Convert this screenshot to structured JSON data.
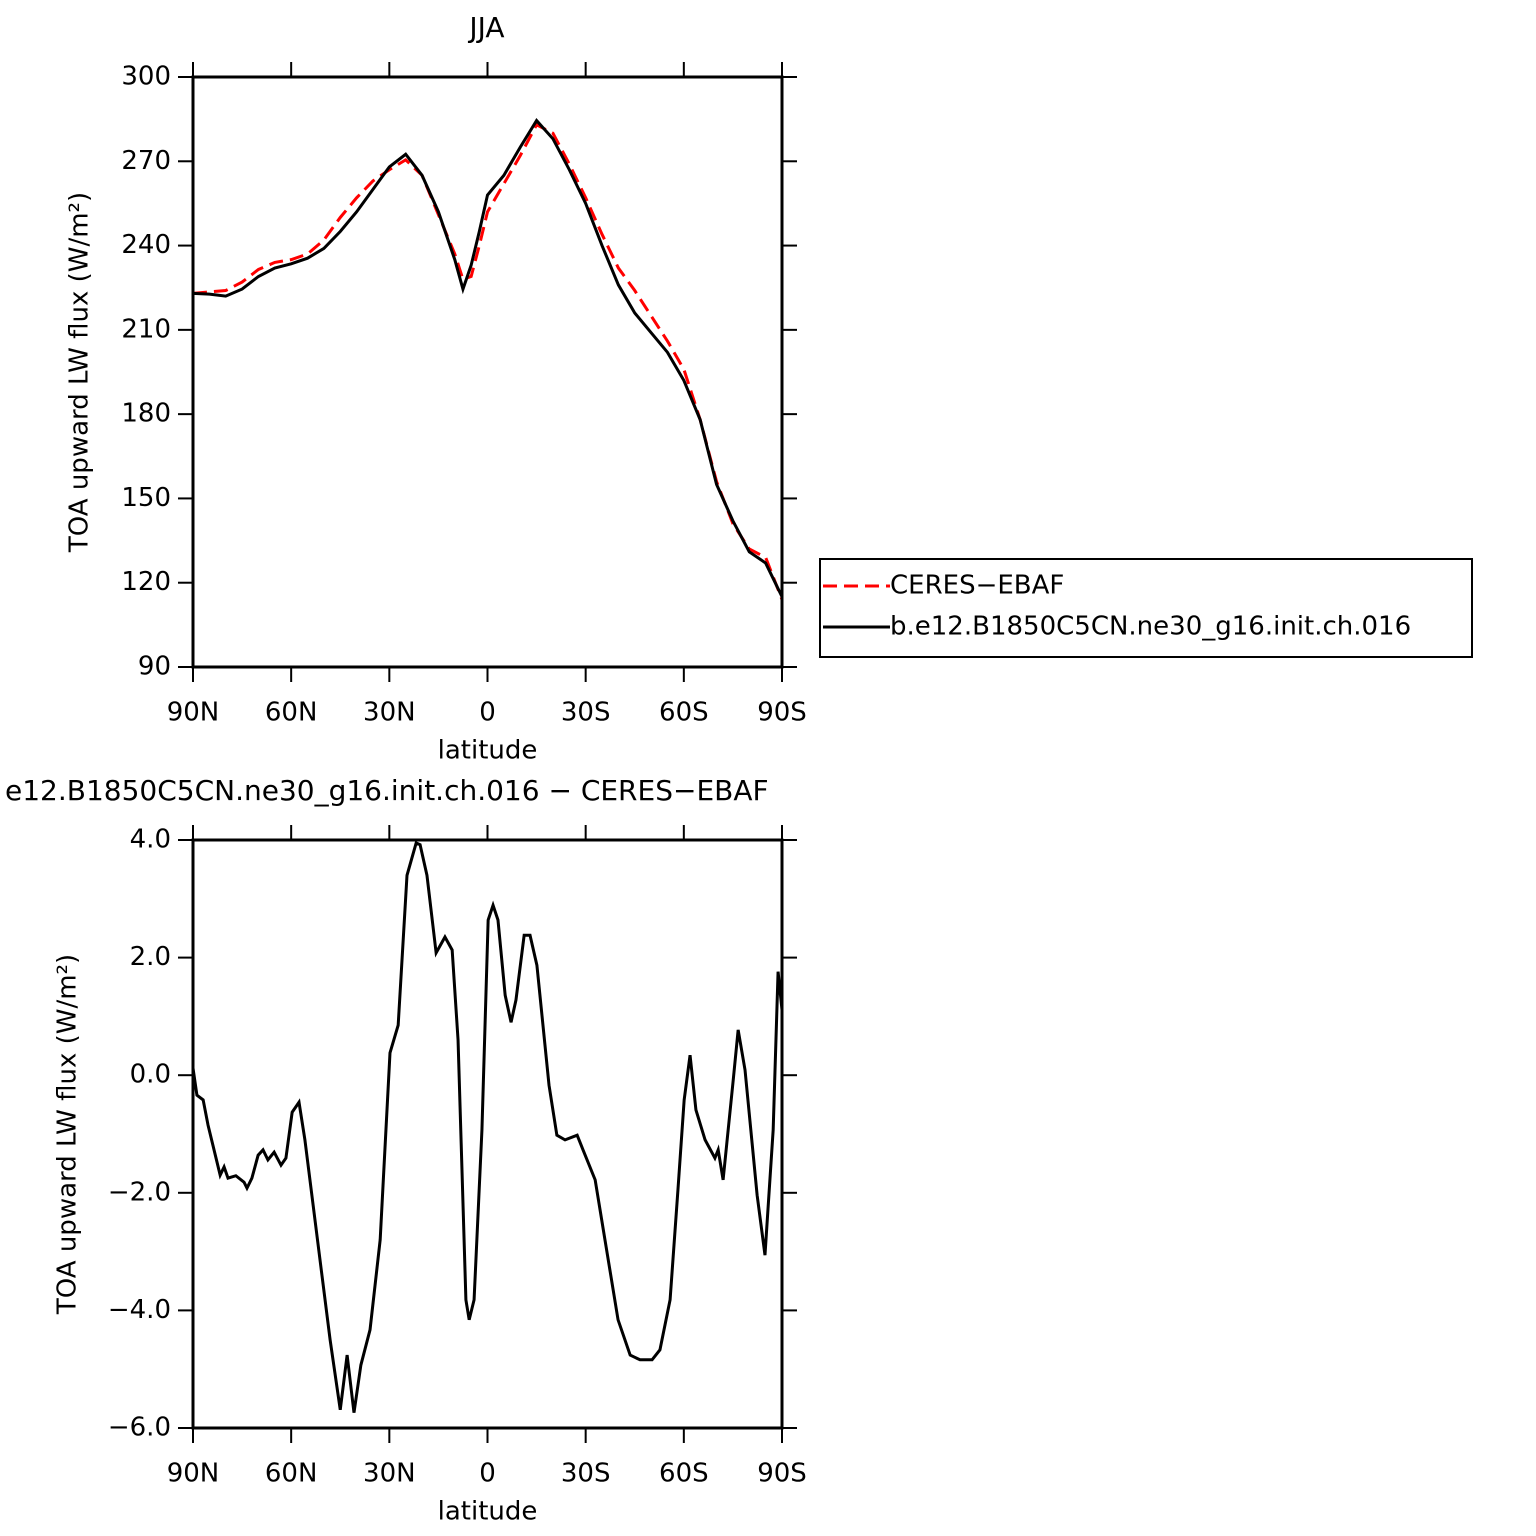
{
  "chart_data": [
    {
      "type": "line",
      "title": "JJA",
      "x_label": "latitude",
      "y_label": "TOA upward LW flux (W/m²)",
      "x": [
        90,
        85,
        80,
        75,
        70,
        65,
        60,
        55,
        50,
        45,
        40,
        35,
        30,
        25,
        20,
        15,
        10,
        7.5,
        5,
        2.5,
        0,
        -5,
        -10,
        -15,
        -20,
        -25,
        -30,
        -35,
        -40,
        -45,
        -50,
        -55,
        -60,
        -65,
        -70,
        -75,
        -80,
        -85,
        -90
      ],
      "series": [
        {
          "name": "CERES−EBAF",
          "color": "#ff0000",
          "dashed": true,
          "values": [
            223,
            223.5,
            224,
            227,
            231.5,
            234,
            235,
            237,
            242,
            250,
            257,
            263,
            267,
            270.5,
            265,
            251,
            237,
            228,
            229,
            240,
            252,
            262,
            272,
            283,
            280,
            269,
            257,
            244,
            232,
            224,
            215,
            206,
            196,
            178,
            156,
            141,
            132,
            129,
            114
          ]
        },
        {
          "name": "b.e12.B1850C5CN.ne30_g16.init.ch.016",
          "color": "#000000",
          "dashed": false,
          "values": [
            223,
            222.7,
            222,
            224.5,
            229,
            232,
            233.5,
            235.5,
            239,
            245,
            252,
            260,
            268,
            272.5,
            265,
            252,
            235,
            224.5,
            233,
            245,
            258,
            265,
            275,
            284.5,
            278,
            267,
            255,
            240,
            226,
            216,
            209,
            202,
            192,
            178,
            155,
            142,
            131,
            127,
            115
          ]
        }
      ],
      "xlim": [
        90,
        -90
      ],
      "xticks": [
        {
          "value": 90,
          "label": "90N"
        },
        {
          "value": 60,
          "label": "60N"
        },
        {
          "value": 30,
          "label": "30N"
        },
        0,
        {
          "value": -30,
          "label": "30S"
        },
        {
          "value": -60,
          "label": "60S"
        },
        {
          "value": -90,
          "label": "90S"
        }
      ],
      "ylim": [
        90,
        300
      ],
      "yticks": [
        90,
        120,
        150,
        180,
        210,
        240,
        270,
        300
      ]
    },
    {
      "type": "line",
      "title": "e12.B1850C5CN.ne30_g16.init.ch.016 − CERES−EBAF",
      "x_label": "latitude",
      "y_label": "TOA upward LW flux (W/m²)",
      "x": [
        90,
        88.8,
        86.9,
        85.4,
        81.7,
        80.5,
        79.3,
        76.9,
        74.4,
        73.5,
        72,
        70.1,
        68.6,
        67.1,
        65.2,
        63.1,
        61.6,
        59.7,
        57.6,
        55.8,
        50.6,
        48.1,
        45,
        42.9,
        40.8,
        38.7,
        35.9,
        32.8,
        29.8,
        27.3,
        24.6,
        21.8,
        20.6,
        18.5,
        15.7,
        13,
        10.8,
        9,
        6.6,
        5.6,
        4.1,
        1.7,
        -0.2,
        -1.7,
        -3.2,
        -5.4,
        -7.2,
        -8.7,
        -11.2,
        -13,
        -15.1,
        -18.8,
        -21.2,
        -23.7,
        -27.4,
        -29.2,
        -32.9,
        -35.9,
        -39.9,
        -43.6,
        -46.6,
        -50.3,
        -52.7,
        -55.8,
        -58.2,
        -60.1,
        -61.9,
        -63.7,
        -66.5,
        -69.5,
        -70.5,
        -72,
        -75.1,
        -76.6,
        -78.7,
        -82.4,
        -84.8,
        -87.3,
        -88.8,
        -90
      ],
      "values": [
        0.12,
        -0.34,
        -0.42,
        -0.85,
        -1.7,
        -1.56,
        -1.75,
        -1.71,
        -1.82,
        -1.92,
        -1.75,
        -1.36,
        -1.27,
        -1.44,
        -1.31,
        -1.53,
        -1.41,
        -0.63,
        -0.46,
        -1.1,
        -3.4,
        -4.5,
        -5.69,
        -4.76,
        -5.74,
        -4.93,
        -4.33,
        -2.8,
        0.38,
        0.85,
        3.4,
        3.95,
        3.92,
        3.4,
        2.08,
        2.35,
        2.13,
        0.6,
        -3.82,
        -4.16,
        -3.82,
        -0.93,
        2.64,
        2.89,
        2.64,
        1.36,
        0.9,
        1.28,
        2.38,
        2.38,
        1.87,
        -0.17,
        -1.02,
        -1.1,
        -1.02,
        -1.27,
        -1.78,
        -2.8,
        -4.16,
        -4.76,
        -4.84,
        -4.84,
        -4.67,
        -3.82,
        -1.95,
        -0.42,
        0.34,
        -0.59,
        -1.1,
        -1.41,
        -1.27,
        -1.78,
        -0.08,
        0.77,
        0.09,
        -2.04,
        -3.06,
        -0.93,
        1.76,
        1.11
      ],
      "color": "#000000",
      "xlim": [
        90,
        -90
      ],
      "xticks": [
        {
          "value": 90,
          "label": "90N"
        },
        {
          "value": 60,
          "label": "60N"
        },
        {
          "value": 30,
          "label": "30N"
        },
        0,
        {
          "value": -30,
          "label": "30S"
        },
        {
          "value": -60,
          "label": "60S"
        },
        {
          "value": -90,
          "label": "90S"
        }
      ],
      "ylim": [
        -6,
        4
      ],
      "yticks": [
        {
          "value": -6,
          "label": "−6.0"
        },
        {
          "value": -4,
          "label": "−4.0"
        },
        {
          "value": -2,
          "label": "−2.0"
        },
        {
          "value": 0,
          "label": "0.0"
        },
        {
          "value": 2,
          "label": "2.0"
        },
        {
          "value": 4,
          "label": "4.0"
        }
      ]
    }
  ]
}
